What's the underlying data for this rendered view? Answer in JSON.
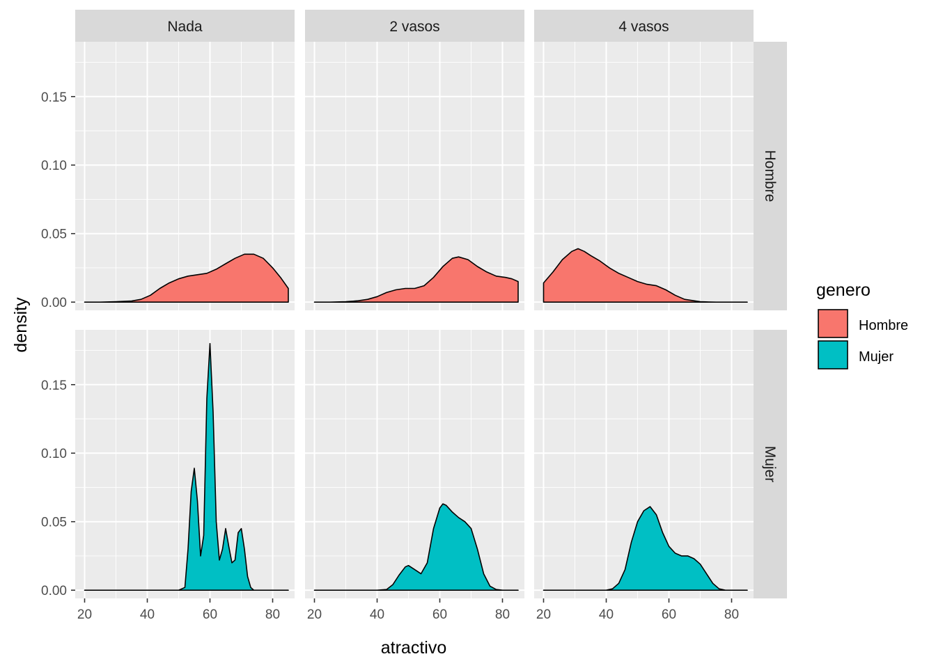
{
  "chart_data": {
    "type": "density",
    "facet_columns": [
      "Nada",
      "2 vasos",
      "4 vasos"
    ],
    "facet_rows": [
      "Hombre",
      "Mujer"
    ],
    "xlabel": "atractivo",
    "ylabel": "density",
    "xlim": [
      17,
      87
    ],
    "ylim": [
      -0.006,
      0.19
    ],
    "x_ticks": [
      20,
      40,
      60,
      80
    ],
    "y_ticks": [
      0.0,
      0.05,
      0.1,
      0.15
    ],
    "y_tick_labels": [
      "0.00",
      "0.05",
      "0.10",
      "0.15"
    ],
    "grid": true,
    "legend": {
      "title": "genero",
      "position": "right",
      "entries": [
        {
          "label": "Hombre",
          "color": "#F8766D"
        },
        {
          "label": "Mujer",
          "color": "#00BFC4"
        }
      ]
    },
    "panels": [
      {
        "row": "Hombre",
        "col": "Nada",
        "color": "#F8766D",
        "x": [
          20,
          25,
          30,
          35,
          38,
          41,
          44,
          47,
          50,
          53,
          56,
          59,
          62,
          65,
          68,
          71,
          74,
          77,
          80,
          82.5,
          85
        ],
        "y": [
          0,
          0,
          0.0003,
          0.0008,
          0.002,
          0.005,
          0.01,
          0.014,
          0.017,
          0.019,
          0.02,
          0.021,
          0.024,
          0.028,
          0.032,
          0.035,
          0.035,
          0.032,
          0.025,
          0.018,
          0.01
        ]
      },
      {
        "row": "Hombre",
        "col": "2 vasos",
        "color": "#F8766D",
        "x": [
          20,
          25,
          30,
          34,
          37,
          40,
          43,
          46,
          49,
          52,
          55,
          58,
          61,
          64,
          66,
          69,
          72,
          75,
          78,
          81,
          83,
          85
        ],
        "y": [
          0,
          0,
          0.0003,
          0.001,
          0.002,
          0.004,
          0.007,
          0.009,
          0.01,
          0.01,
          0.012,
          0.018,
          0.026,
          0.032,
          0.033,
          0.031,
          0.026,
          0.022,
          0.019,
          0.018,
          0.017,
          0.015
        ]
      },
      {
        "row": "Hombre",
        "col": "4 vasos",
        "color": "#F8766D",
        "x": [
          20,
          23,
          26,
          29,
          31,
          33,
          35,
          38,
          41,
          44,
          47,
          50,
          53,
          56,
          59,
          62,
          65,
          70,
          75,
          80,
          85
        ],
        "y": [
          0.014,
          0.022,
          0.031,
          0.037,
          0.039,
          0.037,
          0.034,
          0.03,
          0.025,
          0.021,
          0.018,
          0.015,
          0.013,
          0.012,
          0.009,
          0.005,
          0.002,
          0.0003,
          0,
          0,
          0
        ]
      },
      {
        "row": "Mujer",
        "col": "Nada",
        "color": "#00BFC4",
        "x": [
          20,
          40,
          50,
          52,
          53,
          54,
          55,
          56,
          57,
          58,
          59,
          60,
          61,
          62,
          63,
          64,
          65,
          66,
          67,
          68,
          69,
          70,
          71,
          72,
          73,
          74,
          75,
          80,
          85
        ],
        "y": [
          0,
          0,
          0,
          0.002,
          0.03,
          0.072,
          0.089,
          0.065,
          0.025,
          0.04,
          0.14,
          0.18,
          0.13,
          0.05,
          0.022,
          0.03,
          0.045,
          0.032,
          0.02,
          0.022,
          0.042,
          0.045,
          0.03,
          0.01,
          0.002,
          0,
          0,
          0,
          0
        ]
      },
      {
        "row": "Mujer",
        "col": "2 vasos",
        "color": "#00BFC4",
        "x": [
          20,
          40,
          43,
          45,
          47,
          49,
          50,
          52,
          54,
          56,
          58,
          60,
          61,
          62,
          64,
          66,
          68,
          70,
          72,
          74,
          76,
          78,
          80,
          85
        ],
        "y": [
          0,
          0,
          0.0005,
          0.004,
          0.011,
          0.017,
          0.018,
          0.015,
          0.012,
          0.02,
          0.045,
          0.06,
          0.063,
          0.062,
          0.057,
          0.053,
          0.05,
          0.045,
          0.03,
          0.012,
          0.003,
          0.0005,
          0,
          0
        ]
      },
      {
        "row": "Mujer",
        "col": "4 vasos",
        "color": "#00BFC4",
        "x": [
          20,
          40,
          42,
          44,
          46,
          48,
          50,
          52,
          54,
          56,
          58,
          60,
          62,
          64,
          66,
          68,
          70,
          72,
          74,
          76,
          78,
          80,
          85
        ],
        "y": [
          0,
          0,
          0.001,
          0.005,
          0.015,
          0.035,
          0.05,
          0.058,
          0.061,
          0.055,
          0.042,
          0.032,
          0.027,
          0.025,
          0.025,
          0.023,
          0.019,
          0.012,
          0.005,
          0.001,
          0,
          0,
          0
        ]
      }
    ]
  }
}
